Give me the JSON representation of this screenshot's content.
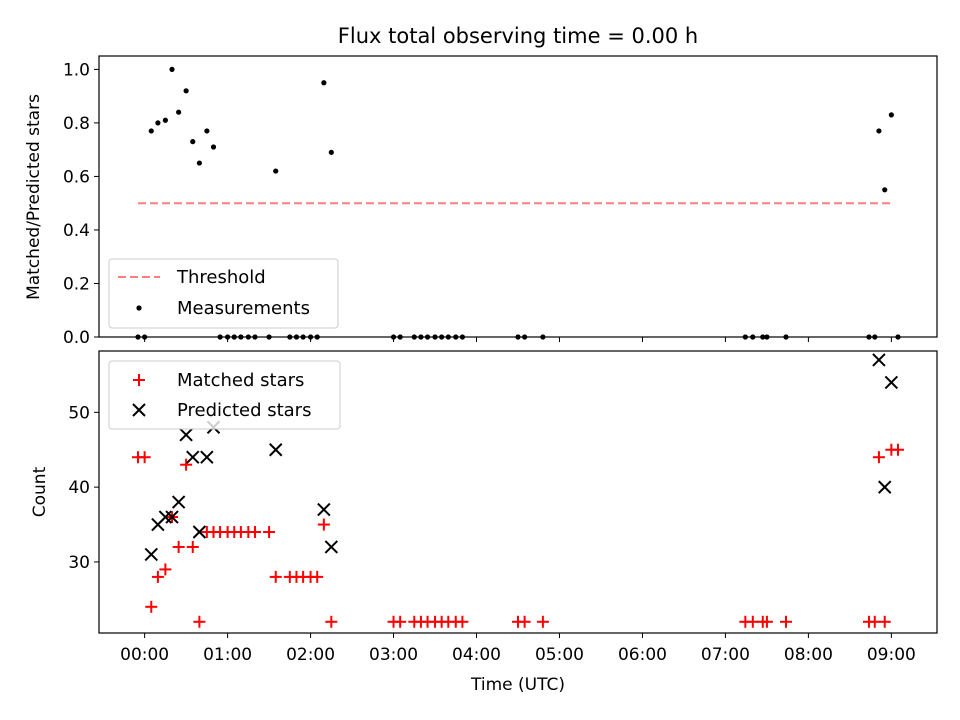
{
  "chart_data": [
    {
      "type": "scatter",
      "title": "Flux total observing time = 0.00 h",
      "ylabel": "Matched/Predicted stars",
      "xlabel": "",
      "xlim_hours": [
        -0.55,
        9.55
      ],
      "ylim": [
        0,
        1.05
      ],
      "yticks": [
        "0.0",
        "0.2",
        "0.4",
        "0.6",
        "0.8",
        "1.0"
      ],
      "ytick_values": [
        0,
        0.2,
        0.4,
        0.6,
        0.8,
        1.0
      ],
      "legend_position": "lower-left",
      "grid": false,
      "series": [
        {
          "name": "Threshold",
          "kind": "dashed-line",
          "color": "#ff7f7f",
          "x": [
            -0.08,
            9.02
          ],
          "y": [
            0.5,
            0.5
          ]
        },
        {
          "name": "Measurements",
          "kind": "dot",
          "color": "#000000",
          "x": [
            -0.08,
            0.0,
            0.08,
            0.16,
            0.25,
            0.33,
            0.41,
            0.5,
            0.58,
            0.66,
            0.75,
            0.83,
            0.91,
            1.0,
            1.08,
            1.16,
            1.25,
            1.33,
            1.5,
            1.58,
            1.75,
            1.83,
            1.91,
            2.0,
            2.08,
            2.16,
            2.25,
            3.0,
            3.08,
            3.25,
            3.33,
            3.41,
            3.5,
            3.58,
            3.66,
            3.75,
            3.83,
            4.5,
            4.58,
            4.8,
            7.24,
            7.33,
            7.45,
            7.5,
            7.73,
            8.73,
            8.8,
            8.85,
            8.92,
            9.0,
            9.08
          ],
          "y": [
            0,
            0,
            0.77,
            0.8,
            0.81,
            1.0,
            0.84,
            0.92,
            0.73,
            0.65,
            0.77,
            0.71,
            0,
            0,
            0,
            0,
            0,
            0,
            0,
            0.62,
            0,
            0,
            0,
            0,
            0,
            0.95,
            0.69,
            0,
            0,
            0,
            0,
            0,
            0,
            0,
            0,
            0,
            0,
            0,
            0,
            0,
            0,
            0,
            0,
            0,
            0,
            0,
            0,
            0.77,
            0.55,
            0.83,
            0
          ]
        }
      ]
    },
    {
      "type": "scatter",
      "title": "",
      "ylabel": "Count",
      "xlabel": "Time (UTC)",
      "xlim_hours": [
        -0.55,
        9.55
      ],
      "ylim": [
        20.5,
        58.2
      ],
      "yticks": [
        "30",
        "40",
        "50"
      ],
      "ytick_values": [
        30,
        40,
        50
      ],
      "xticks": [
        "00:00",
        "01:00",
        "02:00",
        "03:00",
        "04:00",
        "05:00",
        "06:00",
        "07:00",
        "08:00",
        "09:00"
      ],
      "xtick_values": [
        0,
        1,
        2,
        3,
        4,
        5,
        6,
        7,
        8,
        9
      ],
      "legend_position": "upper-left",
      "grid": false,
      "series": [
        {
          "name": "Matched stars",
          "marker": "plus",
          "color": "#ff0000",
          "x": [
            -0.08,
            0.0,
            0.08,
            0.16,
            0.25,
            0.33,
            0.41,
            0.5,
            0.58,
            0.66,
            0.75,
            0.83,
            0.91,
            1.0,
            1.08,
            1.16,
            1.25,
            1.33,
            1.5,
            1.58,
            1.75,
            1.83,
            1.91,
            2.0,
            2.08,
            2.16,
            2.25,
            3.0,
            3.08,
            3.25,
            3.33,
            3.41,
            3.5,
            3.58,
            3.66,
            3.75,
            3.83,
            4.5,
            4.58,
            4.8,
            7.24,
            7.33,
            7.45,
            7.5,
            7.73,
            8.73,
            8.8,
            8.85,
            8.92,
            9.0,
            9.08
          ],
          "y": [
            44,
            44,
            24,
            28,
            29,
            36,
            32,
            43,
            32,
            22,
            34,
            34,
            34,
            34,
            34,
            34,
            34,
            34,
            34,
            28,
            28,
            28,
            28,
            28,
            28,
            35,
            22,
            22,
            22,
            22,
            22,
            22,
            22,
            22,
            22,
            22,
            22,
            22,
            22,
            22,
            22,
            22,
            22,
            22,
            22,
            22,
            22,
            44,
            22,
            45,
            45
          ]
        },
        {
          "name": "Predicted stars",
          "marker": "x",
          "color": "#000000",
          "x": [
            0.08,
            0.16,
            0.25,
            0.33,
            0.41,
            0.5,
            0.58,
            0.66,
            0.75,
            0.83,
            1.58,
            2.16,
            2.25,
            8.85,
            8.92,
            9.0
          ],
          "y": [
            31,
            35,
            36,
            36,
            38,
            47,
            44,
            34,
            44,
            48,
            45,
            37,
            32,
            57,
            40,
            54
          ]
        }
      ]
    }
  ]
}
